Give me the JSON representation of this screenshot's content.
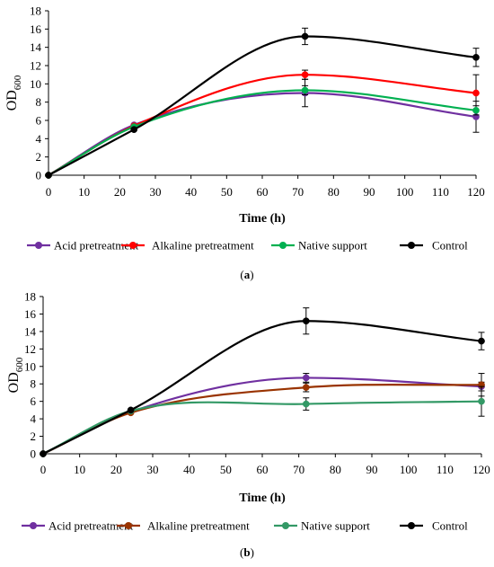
{
  "figure": {
    "panels": [
      {
        "caption": "(a)"
      },
      {
        "caption": "(b)"
      }
    ]
  },
  "chart_data": [
    {
      "type": "line",
      "caption": "(a)",
      "title": "",
      "xlabel": "Time (h)",
      "ylabel": "OD600",
      "ylabel_main": "OD",
      "ylabel_sub": "600",
      "xlim": [
        0,
        120
      ],
      "ylim": [
        0,
        18
      ],
      "xticks": [
        0,
        10,
        20,
        30,
        40,
        50,
        60,
        70,
        80,
        90,
        100,
        110,
        120
      ],
      "yticks": [
        0,
        2,
        4,
        6,
        8,
        10,
        12,
        14,
        16,
        18
      ],
      "grid": false,
      "legend_position": "bottom",
      "x": [
        0,
        24,
        72,
        120
      ],
      "series": [
        {
          "name": "Acid pretreatment",
          "color": "#7030a0",
          "values": [
            0,
            5.5,
            9.0,
            6.4
          ],
          "errors": [
            0,
            0,
            1.5,
            1.7
          ]
        },
        {
          "name": "Alkaline pretreatment",
          "color": "#ff0000",
          "values": [
            0,
            5.4,
            11.0,
            9.0
          ],
          "errors": [
            0,
            0,
            0.5,
            2.0
          ]
        },
        {
          "name": "Native support",
          "color": "#00b050",
          "values": [
            0,
            5.3,
            9.3,
            7.1
          ],
          "errors": [
            0,
            0,
            0.5,
            0.5
          ]
        },
        {
          "name": "Control",
          "color": "#000000",
          "values": [
            0,
            5.0,
            15.2,
            12.9
          ],
          "errors": [
            0,
            0,
            0.9,
            1.0
          ]
        }
      ]
    },
    {
      "type": "line",
      "caption": "(b)",
      "title": "",
      "xlabel": "Time (h)",
      "ylabel": "OD600",
      "ylabel_main": "OD",
      "ylabel_sub": "600",
      "xlim": [
        0,
        120
      ],
      "ylim": [
        0,
        18
      ],
      "xticks": [
        0,
        10,
        20,
        30,
        40,
        50,
        60,
        70,
        80,
        90,
        100,
        110,
        120
      ],
      "yticks": [
        0,
        2,
        4,
        6,
        8,
        10,
        12,
        14,
        16,
        18
      ],
      "grid": false,
      "legend_position": "bottom",
      "x": [
        0,
        24,
        72,
        120
      ],
      "series": [
        {
          "name": "Acid pretreatment",
          "color": "#7030a0",
          "values": [
            0,
            4.8,
            8.7,
            7.7
          ],
          "errors": [
            0,
            0,
            0.5,
            0.5
          ]
        },
        {
          "name": "Alkaline pretreatment",
          "color": "#993300",
          "values": [
            0,
            4.7,
            7.6,
            7.9
          ],
          "errors": [
            0,
            0,
            0.5,
            1.3
          ]
        },
        {
          "name": "Native support",
          "color": "#339966",
          "values": [
            0,
            4.9,
            5.7,
            6.0
          ],
          "errors": [
            0,
            0,
            0.7,
            1.7
          ]
        },
        {
          "name": "Control",
          "color": "#000000",
          "values": [
            0,
            5.0,
            15.2,
            12.9
          ],
          "errors": [
            0,
            0,
            1.5,
            1.0
          ]
        }
      ]
    }
  ]
}
